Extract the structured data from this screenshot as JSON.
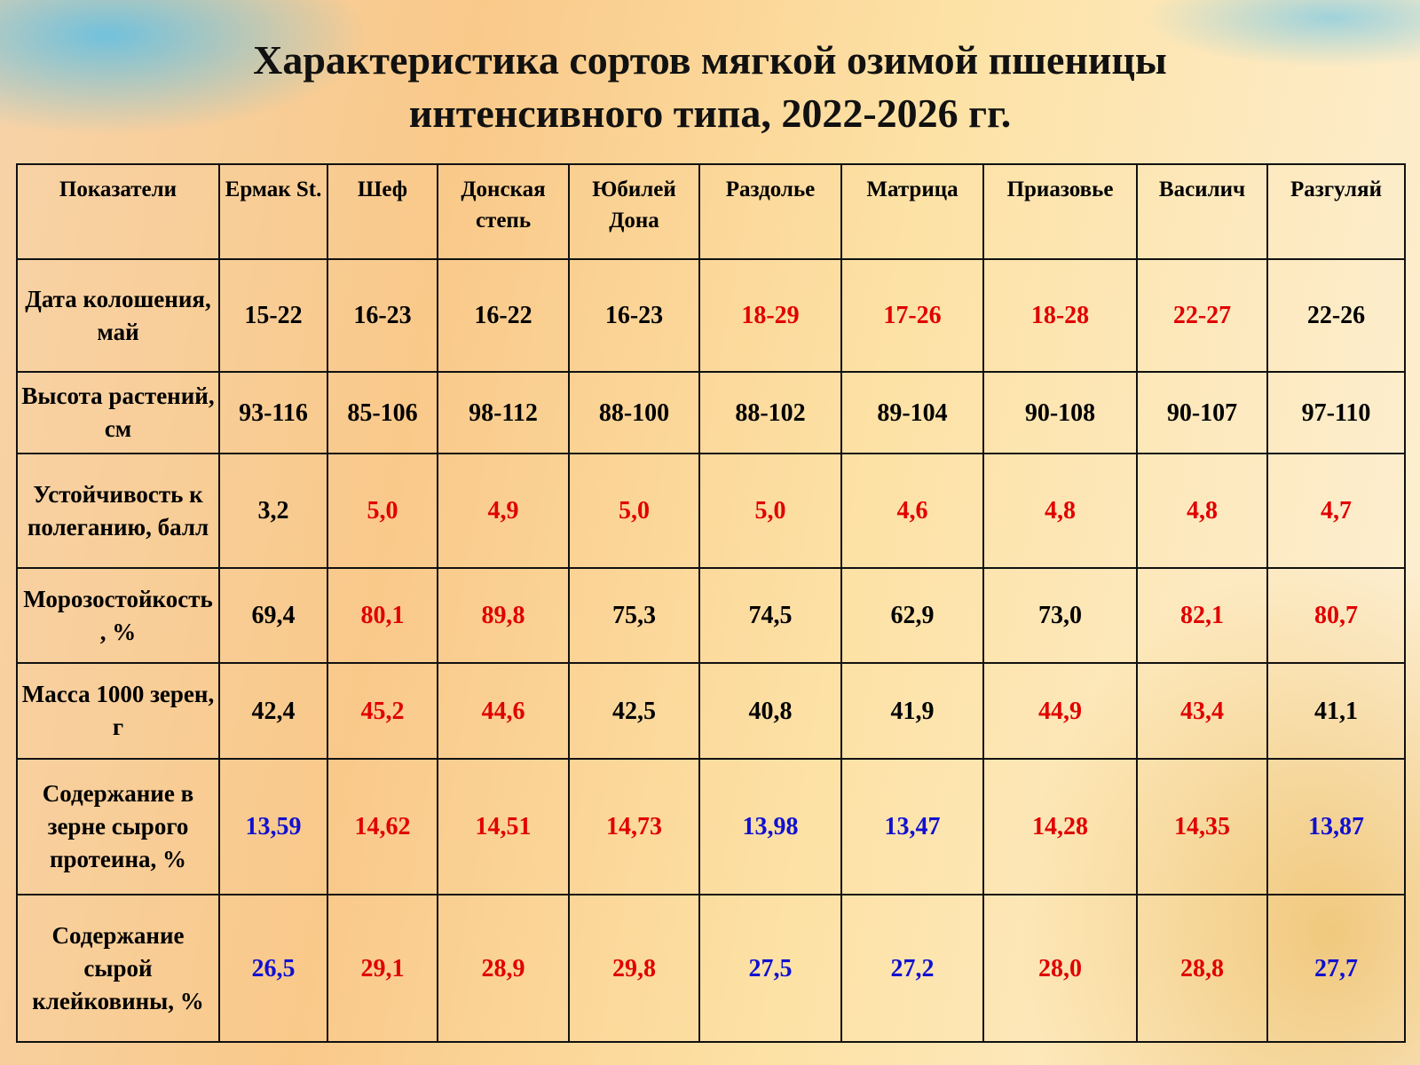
{
  "title": [
    "Характеристика сортов мягкой озимой пшеницы",
    "интенсивного  типа, 2022-2026 гг."
  ],
  "table": {
    "header": [
      "Показатели",
      "Ермак St.",
      "Шеф",
      "Донская степь",
      "Юбилей Дона",
      "Раздолье",
      "Матрица",
      "Приазовье",
      "Василич",
      "Разгуляй"
    ],
    "rows": [
      {
        "label": "Дата колошения, май",
        "cells": [
          "15-22",
          "16-23",
          "16-22",
          "16-23",
          "18-29",
          "17-26",
          "18-28",
          "22-27",
          "22-26"
        ],
        "colors": [
          "#000000",
          "#000000",
          "#000000",
          "#000000",
          "#e00000",
          "#e00000",
          "#e00000",
          "#e00000",
          "#000000"
        ]
      },
      {
        "label": "Высота растений, см",
        "cells": [
          "93-116",
          "85-106",
          "98-112",
          "88-100",
          "88-102",
          "89-104",
          "90-108",
          "90-107",
          "97-110"
        ],
        "colors": [
          "#000000",
          "#000000",
          "#000000",
          "#000000",
          "#000000",
          "#000000",
          "#000000",
          "#000000",
          "#000000"
        ]
      },
      {
        "label": "Устойчивость к полеганию, балл",
        "cells": [
          "3,2",
          "5,0",
          "4,9",
          "5,0",
          "5,0",
          "4,6",
          "4,8",
          "4,8",
          "4,7"
        ],
        "colors": [
          "#000000",
          "#e00000",
          "#e00000",
          "#e00000",
          "#e00000",
          "#e00000",
          "#e00000",
          "#e00000",
          "#e00000"
        ]
      },
      {
        "label": "Морозостойкость, %",
        "cells": [
          "69,4",
          "80,1",
          "89,8",
          "75,3",
          "74,5",
          "62,9",
          "73,0",
          "82,1",
          "80,7"
        ],
        "colors": [
          "#000000",
          "#e00000",
          "#e00000",
          "#000000",
          "#000000",
          "#000000",
          "#000000",
          "#e00000",
          "#e00000"
        ]
      },
      {
        "label": "Масса 1000 зерен, г",
        "cells": [
          "42,4",
          "45,2",
          "44,6",
          "42,5",
          "40,8",
          "41,9",
          "44,9",
          "43,4",
          "41,1"
        ],
        "colors": [
          "#000000",
          "#e00000",
          "#e00000",
          "#000000",
          "#000000",
          "#000000",
          "#e00000",
          "#e00000",
          "#000000"
        ]
      },
      {
        "label": "Содержание в зерне сырого протеина, %",
        "cells": [
          "13,59",
          "14,62",
          "14,51",
          "14,73",
          "13,98",
          "13,47",
          "14,28",
          "14,35",
          "13,87"
        ],
        "colors": [
          "#1010d0",
          "#e00000",
          "#e00000",
          "#e00000",
          "#1010d0",
          "#1010d0",
          "#e00000",
          "#e00000",
          "#1010d0"
        ]
      },
      {
        "label": "Содержание сырой клейковины, %",
        "cells": [
          "26,5",
          "29,1",
          "28,9",
          "29,8",
          "27,5",
          "27,2",
          "28,0",
          "28,8",
          "27,7"
        ],
        "colors": [
          "#1010d0",
          "#e00000",
          "#e00000",
          "#e00000",
          "#1010d0",
          "#1010d0",
          "#e00000",
          "#e00000",
          "#1010d0"
        ]
      }
    ]
  }
}
